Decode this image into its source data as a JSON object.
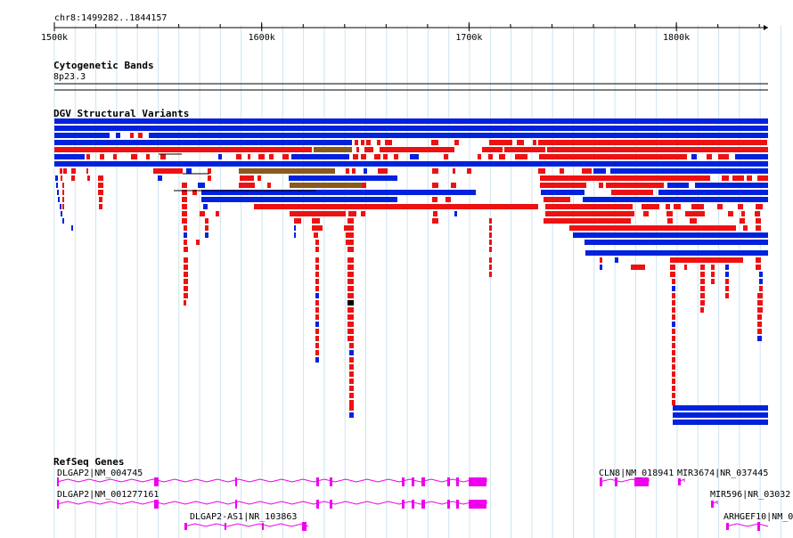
{
  "region": {
    "label": "chr8:1499282..1844157",
    "start": 1499282,
    "end": 1844157
  },
  "ruler": {
    "ticks": [
      {
        "pos": 1500000,
        "label": "1500k"
      },
      {
        "pos": 1600000,
        "label": "1600k"
      },
      {
        "pos": 1700000,
        "label": "1700k"
      },
      {
        "pos": 1800000,
        "label": "1800k"
      }
    ]
  },
  "tracks": {
    "cytobands": {
      "title": "Cytogenetic Bands",
      "band": "8p23.3"
    },
    "dgv": {
      "title": "DGV Structural Variants"
    },
    "refseq": {
      "title": "RefSeq Genes",
      "genes": [
        {
          "label": "DLGAP2|NM_004745"
        },
        {
          "label": "DLGAP2|NM_001277161"
        },
        {
          "label": "DLGAP2-AS1|NR_103863"
        },
        {
          "label": "CLN8|NM_018941"
        },
        {
          "label": "MIR3674|NR_037445"
        },
        {
          "label": "MIR596|NR_03032"
        },
        {
          "label": "ARHGEF10|NM_0"
        }
      ]
    }
  },
  "colors": {
    "gain": "#0022dd",
    "loss": "#ee1111",
    "complex": "#8b5a1a",
    "inversion": "#000000",
    "gene": "#ee00ee",
    "grid": "#cce4f2"
  }
}
